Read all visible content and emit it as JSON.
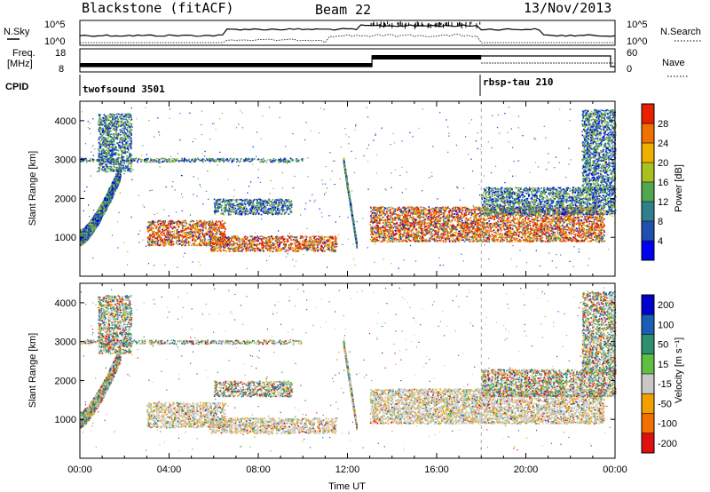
{
  "header": {
    "station": "Blackstone (fitACF)",
    "beam": "Beam 22",
    "date": "13/Nov/2013"
  },
  "sky_panel": {
    "left_label": "N.Sky",
    "right_label": "N.Search",
    "left_ticks": [
      "10^5",
      "10^0"
    ],
    "right_ticks": [
      "10^5",
      "10^0"
    ]
  },
  "freq_panel": {
    "left_label_1": "Freq.",
    "left_label_2": "[MHz]",
    "right_label": "Nave",
    "left_ticks": [
      "18",
      "8"
    ],
    "right_ticks": [
      "60",
      "0"
    ]
  },
  "cpid": {
    "label": "CPID",
    "programs": [
      {
        "name": "twofsound 3501",
        "start_hour": 0
      },
      {
        "name": "rbsp-tau 210",
        "start_hour": 18
      }
    ]
  },
  "chart_data": [
    {
      "type": "heatmap",
      "panel": "power",
      "ylabel": "Slant Range [km]",
      "xlabel": "",
      "ylim": [
        0,
        4500
      ],
      "xlim_hours": [
        0,
        24
      ],
      "yticks": [
        "1000",
        "2000",
        "3000",
        "4000"
      ],
      "colorbar": {
        "label": "Power [dB]",
        "ticks": [
          "4",
          "8",
          "12",
          "16",
          "20",
          "24",
          "28"
        ],
        "range": [
          0,
          30
        ],
        "colors": [
          "#0000ee",
          "#1f4fb0",
          "#2f7f8f",
          "#4fa84f",
          "#a8c020",
          "#f0b000",
          "#f07000",
          "#e82000"
        ]
      },
      "echo_regions": [
        {
          "t0": 0.0,
          "t1": 1.8,
          "r0": 900,
          "r1": 2700,
          "note": "near-range arc"
        },
        {
          "t0": 0.8,
          "t1": 2.3,
          "r0": 2700,
          "r1": 4200
        },
        {
          "t0": 0.0,
          "t1": 10.0,
          "r0": 2950,
          "r1": 3050,
          "note": "3000 km band"
        },
        {
          "t0": 3.0,
          "t1": 6.5,
          "r0": 800,
          "r1": 1450,
          "note": "strong patch"
        },
        {
          "t0": 5.8,
          "t1": 11.5,
          "r0": 650,
          "r1": 1050,
          "note": "strong band"
        },
        {
          "t0": 6.0,
          "t1": 9.5,
          "r0": 1600,
          "r1": 2000
        },
        {
          "t0": 11.8,
          "t1": 12.4,
          "r0": 800,
          "r1": 3000,
          "note": "steep streak"
        },
        {
          "t0": 13.0,
          "t1": 23.5,
          "r0": 900,
          "r1": 1800,
          "note": "strong band"
        },
        {
          "t0": 18.0,
          "t1": 24.0,
          "r0": 1600,
          "r1": 2300
        },
        {
          "t0": 22.5,
          "t1": 24.0,
          "r0": 2200,
          "r1": 4300
        }
      ]
    },
    {
      "type": "heatmap",
      "panel": "velocity",
      "ylabel": "Slant Range [km]",
      "xlabel": "Time UT",
      "ylim": [
        0,
        4500
      ],
      "xlim_hours": [
        0,
        24
      ],
      "yticks": [
        "1000",
        "2000",
        "3000",
        "4000"
      ],
      "xticks": [
        "00:00",
        "04:00",
        "08:00",
        "12:00",
        "16:00",
        "20:00",
        "00:00"
      ],
      "colorbar": {
        "label": "Velocity [m s⁻¹]",
        "ticks": [
          "200",
          "100",
          "50",
          "15",
          "-15",
          "-50",
          "-100",
          "-200"
        ],
        "colors": [
          "#0000cc",
          "#1a5fb4",
          "#2f8f6f",
          "#5fc040",
          "#c8c8c8",
          "#f0a000",
          "#f07000",
          "#e01010"
        ]
      }
    }
  ]
}
